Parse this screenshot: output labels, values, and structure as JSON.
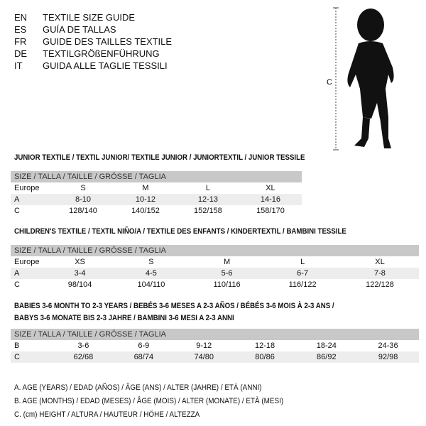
{
  "languages": [
    {
      "code": "EN",
      "title": "TEXTILE SIZE GUIDE"
    },
    {
      "code": "ES",
      "title": "GUÍA DE TALLAS"
    },
    {
      "code": "FR",
      "title": "GUIDE DES TAILLES TEXTILE"
    },
    {
      "code": "DE",
      "title": "TEXTILGRÖßENFÜHRUNG"
    },
    {
      "code": "IT",
      "title": "GUIDA ALLE TAGLIE TESSILI"
    }
  ],
  "figure": {
    "label": "C"
  },
  "junior": {
    "title": "JUNIOR TEXTILE / TEXTIL JUNIOR/ TEXTILE JUNIOR / JUNIORTEXTIL / JUNIOR TESSILE",
    "header": "SIZE / TALLA / TAILLE / GRÖSSE / TAGLIA",
    "rows": [
      {
        "label": "Europe",
        "values": [
          "S",
          "M",
          "L",
          "XL"
        ]
      },
      {
        "label": "A",
        "values": [
          "8-10",
          "10-12",
          "12-13",
          "14-16"
        ]
      },
      {
        "label": "C",
        "values": [
          "128/140",
          "140/152",
          "152/158",
          "158/170"
        ]
      }
    ]
  },
  "children": {
    "title": "CHILDREN'S TEXTILE / TEXTIL NIÑO/A / TEXTILE DES ENFANTS / KINDERTEXTIL / BAMBINI TESSILE",
    "header": "SIZE / TALLA / TAILLE / GRÖSSE / TAGLIA",
    "rows": [
      {
        "label": "Europe",
        "values": [
          "XS",
          "S",
          "M",
          "L",
          "XL"
        ]
      },
      {
        "label": "A",
        "values": [
          "3-4",
          "4-5",
          "5-6",
          "6-7",
          "7-8"
        ]
      },
      {
        "label": "C",
        "values": [
          "98/104",
          "104/110",
          "110/116",
          "116/122",
          "122/128"
        ]
      }
    ]
  },
  "babies": {
    "title_line1": "BABIES 3-6 MONTH TO 2-3 YEARS / BEBÉS 3-6 MESES A 2-3 AÑOS / BÉBÉS 3-6 MOIS À 2-3 ANS /",
    "title_line2": "BABYS 3-6 MONATE BIS 2-3 JAHRE / BAMBINI 3-6 MESI A 2-3 ANNI",
    "header": "SIZE / TALLA / TAILLE / GRÖSSE / TAGLIA",
    "rows": [
      {
        "label": "B",
        "values": [
          "3-6",
          "6-9",
          "9-12",
          "12-18",
          "18-24",
          "24-36"
        ]
      },
      {
        "label": "C",
        "values": [
          "62/68",
          "68/74",
          "74/80",
          "80/86",
          "86/92",
          "92/98"
        ]
      }
    ]
  },
  "legend": [
    "A. AGE (YEARS) / EDAD (AÑOS) / ÂGE (ANS) / ALTER (JAHRE) / ETÀ (ANNI)",
    "B. AGE (MONTHS) / EDAD (MESES) / ÂGE (MOIS) / ALTER (MONATE) / ETÀ (MESI)",
    "C. (cm) HEIGHT / ALTURA / HAUTEUR / HÖHE / ALTEZZA"
  ]
}
